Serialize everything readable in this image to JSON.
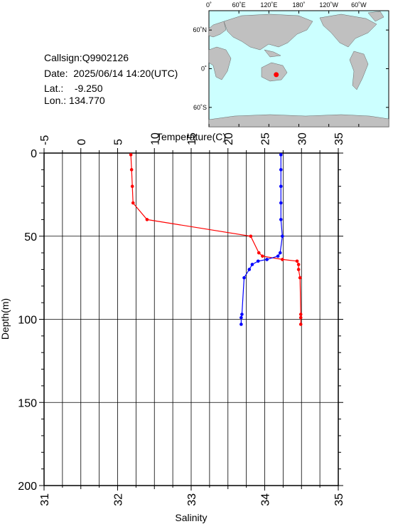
{
  "info": {
    "callsign_label": "Callsign:",
    "callsign": "Q9902126",
    "date_label": "Date:",
    "date": "2025/06/14 14:20(UTC)",
    "lat_label": "Lat.:",
    "lat": "-9.250",
    "lon_label": "Lon.:",
    "lon": "134.770"
  },
  "map": {
    "lon_labels": [
      "0˚",
      "60˚E",
      "120˚E",
      "180˚",
      "120˚W",
      "60˚W"
    ],
    "lat_labels": [
      "60˚N",
      "0˚",
      "60˚S"
    ],
    "marker_lat": -9.25,
    "marker_lon": 134.77,
    "ocean_color": "#ccffff",
    "land_color": "#c0c0c0",
    "marker_color": "#ff0000"
  },
  "chart_data": {
    "type": "line",
    "top_axis": {
      "label": "Temperature(C)",
      "range": [
        -5,
        35
      ],
      "ticks": [
        -5,
        0,
        5,
        10,
        15,
        20,
        25,
        30,
        35
      ]
    },
    "bottom_axis": {
      "label": "Salinity",
      "range": [
        31,
        35
      ],
      "ticks": [
        31,
        32,
        33,
        34,
        35
      ]
    },
    "y_axis": {
      "label": "Depth(m)",
      "range": [
        0,
        200
      ],
      "inverted": true,
      "ticks": [
        0,
        50,
        100,
        150,
        200
      ]
    },
    "grid": true,
    "series": [
      {
        "color": "#ff0000",
        "axis": "bottom",
        "points": [
          {
            "x": 32.18,
            "depth": 1
          },
          {
            "x": 32.19,
            "depth": 10
          },
          {
            "x": 32.2,
            "depth": 20
          },
          {
            "x": 32.21,
            "depth": 30
          },
          {
            "x": 32.4,
            "depth": 40
          },
          {
            "x": 33.81,
            "depth": 50
          },
          {
            "x": 33.92,
            "depth": 60
          },
          {
            "x": 33.97,
            "depth": 62
          },
          {
            "x": 34.24,
            "depth": 64
          },
          {
            "x": 34.44,
            "depth": 65
          },
          {
            "x": 34.46,
            "depth": 67
          },
          {
            "x": 34.46,
            "depth": 70
          },
          {
            "x": 34.48,
            "depth": 75
          },
          {
            "x": 34.49,
            "depth": 97
          },
          {
            "x": 34.49,
            "depth": 99
          },
          {
            "x": 34.49,
            "depth": 103
          }
        ]
      },
      {
        "color": "#0000ff",
        "axis": "top",
        "points": [
          {
            "x": 27.2,
            "depth": 1
          },
          {
            "x": 27.2,
            "depth": 10
          },
          {
            "x": 27.2,
            "depth": 20
          },
          {
            "x": 27.2,
            "depth": 30
          },
          {
            "x": 27.2,
            "depth": 40
          },
          {
            "x": 27.4,
            "depth": 50
          },
          {
            "x": 27.1,
            "depth": 60
          },
          {
            "x": 26.8,
            "depth": 62
          },
          {
            "x": 25.3,
            "depth": 64
          },
          {
            "x": 24.1,
            "depth": 65
          },
          {
            "x": 23.3,
            "depth": 67
          },
          {
            "x": 22.9,
            "depth": 70
          },
          {
            "x": 22.2,
            "depth": 75
          },
          {
            "x": 21.9,
            "depth": 97
          },
          {
            "x": 21.8,
            "depth": 99
          },
          {
            "x": 21.8,
            "depth": 103
          }
        ]
      }
    ]
  }
}
